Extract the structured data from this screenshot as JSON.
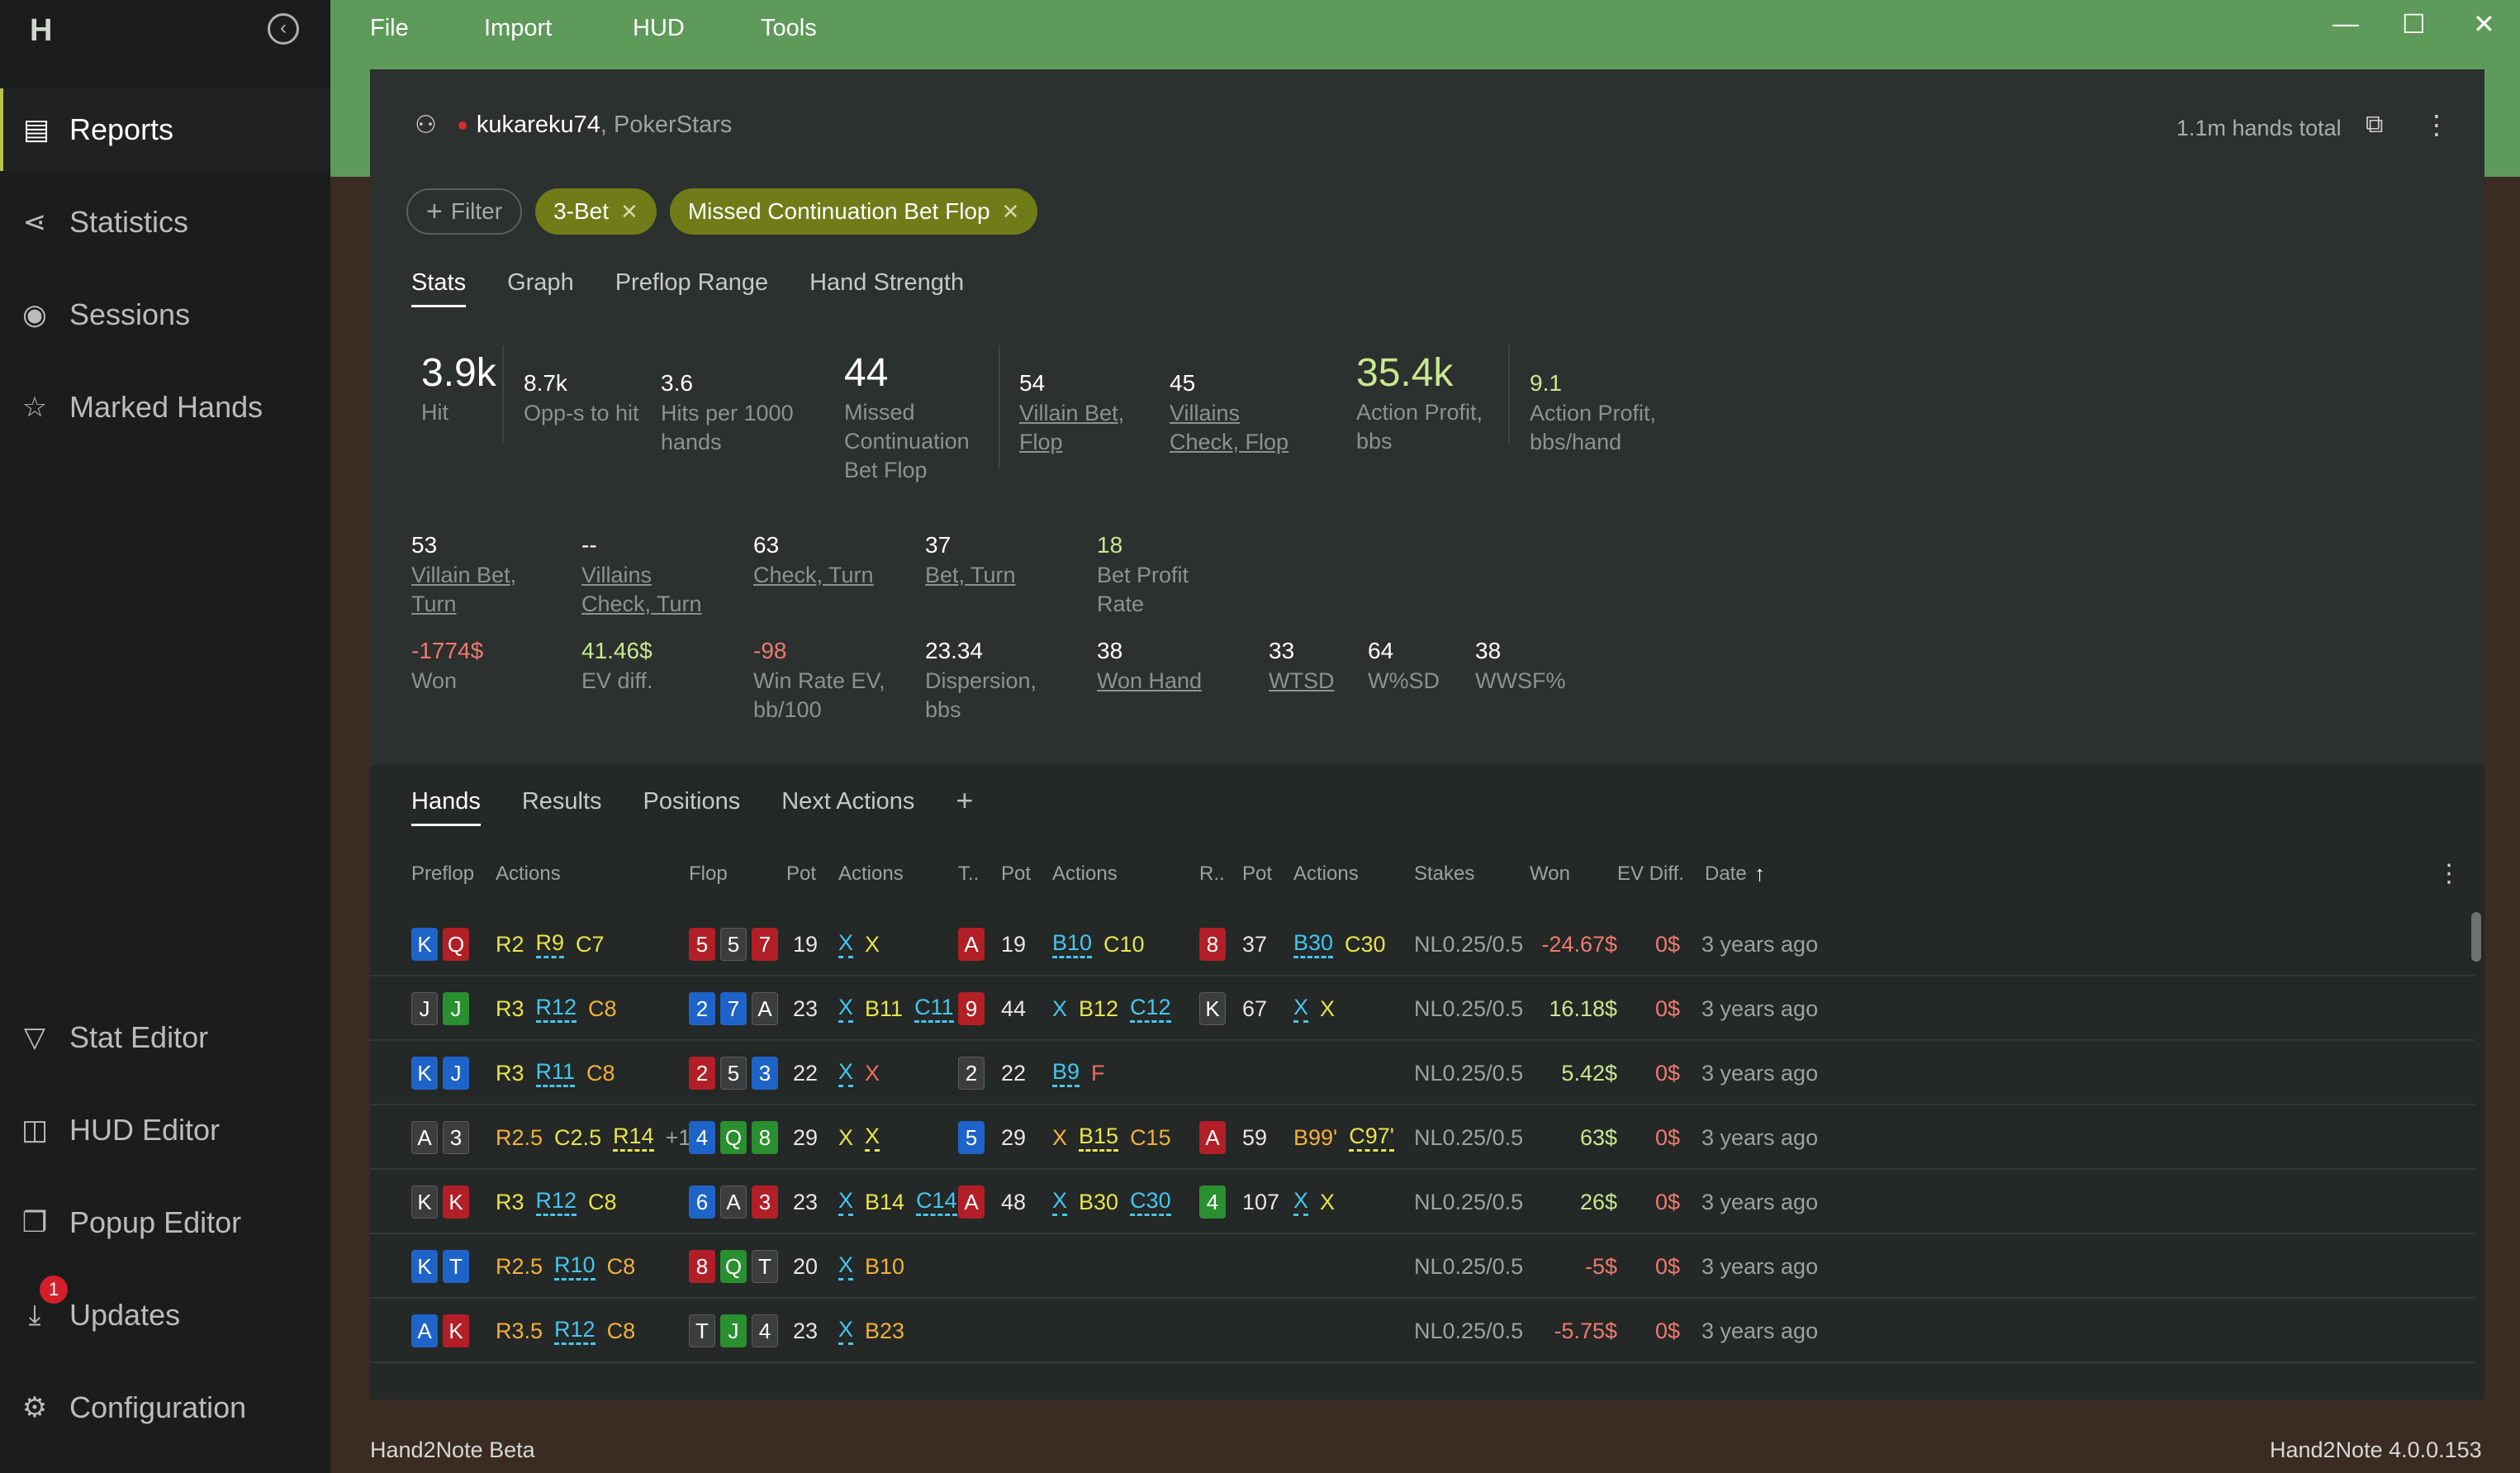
{
  "sidebar": {
    "logo": "H",
    "items": [
      {
        "label": "Reports",
        "icon": "document-icon"
      },
      {
        "label": "Statistics",
        "icon": "network-icon"
      },
      {
        "label": "Sessions",
        "icon": "broadcast-icon"
      },
      {
        "label": "Marked Hands",
        "icon": "star-list-icon"
      },
      {
        "label": "Stat Editor",
        "icon": "filter-icon"
      },
      {
        "label": "HUD Editor",
        "icon": "layout-icon"
      },
      {
        "label": "Popup Editor",
        "icon": "popup-icon"
      },
      {
        "label": "Updates",
        "icon": "download-icon"
      },
      {
        "label": "Configuration",
        "icon": "gear-icon"
      }
    ],
    "updates_badge": "1"
  },
  "menu": {
    "file": "File",
    "import": "Import",
    "hud": "HUD",
    "tools": "Tools"
  },
  "header": {
    "username": "kukareku74",
    "site": ", PokerStars",
    "hands_total": "1.1m hands total"
  },
  "filters": {
    "add_label": "Filter",
    "tags": [
      "3-Bet",
      "Missed Continuation Bet Flop"
    ]
  },
  "stats_tabs": [
    "Stats",
    "Graph",
    "Preflop Range",
    "Hand Strength"
  ],
  "stats": {
    "hit": {
      "value": "3.9k",
      "label": "Hit"
    },
    "opps": {
      "value": "8.7k",
      "label": "Opp-s to hit"
    },
    "hits_per": {
      "value": "3.6",
      "label1": "Hits per 1000",
      "label2": "hands"
    },
    "missed_cbet": {
      "value": "44",
      "label1": "Missed",
      "label2": "Continuation",
      "label3": "Bet Flop"
    },
    "villain_bet_flop": {
      "value": "54",
      "label1": "Villain Bet,",
      "label2": "Flop"
    },
    "villains_check_flop": {
      "value": "45",
      "label1": "Villains",
      "label2": "Check, Flop"
    },
    "action_profit_bbs": {
      "value": "35.4k",
      "label1": "Action Profit,",
      "label2": "bbs"
    },
    "action_profit_hand": {
      "value": "9.1",
      "label1": "Action Profit,",
      "label2": "bbs/hand"
    },
    "villain_bet_turn": {
      "value": "53",
      "label1": "Villain Bet,",
      "label2": "Turn"
    },
    "villains_check_turn": {
      "value": "--",
      "label1": "Villains",
      "label2": "Check, Turn"
    },
    "check_turn": {
      "value": "63",
      "label": "Check, Turn"
    },
    "bet_turn": {
      "value": "37",
      "label": "Bet, Turn"
    },
    "bet_profit": {
      "value": "18",
      "label1": "Bet Profit",
      "label2": "Rate"
    },
    "won": {
      "value": "-1774$",
      "label": "Won"
    },
    "ev_diff": {
      "value": "41.46$",
      "label": "EV diff."
    },
    "win_rate": {
      "value": "-98",
      "label1": "Win Rate EV,",
      "label2": "bb/100"
    },
    "dispersion": {
      "value": "23.34",
      "label1": "Dispersion,",
      "label2": "bbs"
    },
    "won_hand": {
      "value": "38",
      "label": "Won Hand"
    },
    "wtsd": {
      "value": "33",
      "label": "WTSD"
    },
    "wsd": {
      "value": "64",
      "label": "W%SD"
    },
    "wwsf": {
      "value": "38",
      "label": "WWSF%"
    }
  },
  "hands_tabs": [
    "Hands",
    "Results",
    "Positions",
    "Next Actions"
  ],
  "columns": {
    "preflop": "Preflop",
    "actions1": "Actions",
    "flop": "Flop",
    "pot1": "Pot",
    "actions2": "Actions",
    "turn": "T..",
    "pot2": "Pot",
    "actions3": "Actions",
    "river": "R..",
    "pot3": "Pot",
    "actions4": "Actions",
    "stakes": "Stakes",
    "won": "Won",
    "ev_diff": "EV Diff.",
    "date": "Date",
    "sort_arrow": "↑"
  },
  "rows": [
    {
      "hole": [
        {
          "r": "K",
          "s": "d"
        },
        {
          "r": "Q",
          "s": "h"
        }
      ],
      "pre": [
        {
          "t": "R2",
          "c": "y"
        },
        {
          "t": "R9",
          "c": "y",
          "d": "c"
        },
        {
          "t": "C7",
          "c": "y"
        }
      ],
      "flop": [
        {
          "r": "5",
          "s": "h"
        },
        {
          "r": "5",
          "s": "s"
        },
        {
          "r": "7",
          "s": "h"
        }
      ],
      "fpot": "19",
      "fa": [
        {
          "t": "X",
          "c": "x",
          "d": "c"
        },
        {
          "t": "X",
          "c": "y"
        }
      ],
      "turn": [
        {
          "r": "A",
          "s": "h"
        }
      ],
      "tpot": "19",
      "ta": [
        {
          "t": "B10",
          "c": "x",
          "d": "c"
        },
        {
          "t": "C10",
          "c": "y"
        }
      ],
      "river": [
        {
          "r": "8",
          "s": "h"
        }
      ],
      "rpot": "37",
      "ra": [
        {
          "t": "B30",
          "c": "x",
          "d": "c"
        },
        {
          "t": "C30",
          "c": "y"
        }
      ],
      "stakes": "NL0.25/0.5",
      "won": "-24.67$",
      "won_sign": "neg",
      "ev": "0$",
      "date": "3 years ago"
    },
    {
      "hole": [
        {
          "r": "J",
          "s": "s"
        },
        {
          "r": "J",
          "s": "c"
        }
      ],
      "pre": [
        {
          "t": "R3",
          "c": "y"
        },
        {
          "t": "R12",
          "c": "x",
          "d": "c"
        },
        {
          "t": "C8",
          "c": "r"
        }
      ],
      "flop": [
        {
          "r": "2",
          "s": "d"
        },
        {
          "r": "7",
          "s": "d"
        },
        {
          "r": "A",
          "s": "s"
        }
      ],
      "fpot": "23",
      "fa": [
        {
          "t": "X",
          "c": "x",
          "d": "c"
        },
        {
          "t": "B11",
          "c": "y"
        },
        {
          "t": "C11",
          "c": "x",
          "d": "c"
        }
      ],
      "turn": [
        {
          "r": "9",
          "s": "h"
        }
      ],
      "tpot": "44",
      "ta": [
        {
          "t": "X",
          "c": "x"
        },
        {
          "t": "B12",
          "c": "y"
        },
        {
          "t": "C12",
          "c": "x",
          "d": "c"
        }
      ],
      "river": [
        {
          "r": "K",
          "s": "s"
        }
      ],
      "rpot": "67",
      "ra": [
        {
          "t": "X",
          "c": "x",
          "d": "c"
        },
        {
          "t": "X",
          "c": "y"
        }
      ],
      "stakes": "NL0.25/0.5",
      "won": "16.18$",
      "won_sign": "pos",
      "ev": "0$",
      "date": "3 years ago"
    },
    {
      "hole": [
        {
          "r": "K",
          "s": "d"
        },
        {
          "r": "J",
          "s": "d"
        }
      ],
      "pre": [
        {
          "t": "R3",
          "c": "y"
        },
        {
          "t": "R11",
          "c": "x",
          "d": "c"
        },
        {
          "t": "C8",
          "c": "r"
        }
      ],
      "flop": [
        {
          "r": "2",
          "s": "h"
        },
        {
          "r": "5",
          "s": "s"
        },
        {
          "r": "3",
          "s": "d"
        }
      ],
      "fpot": "22",
      "fa": [
        {
          "t": "X",
          "c": "x",
          "d": "c"
        },
        {
          "t": "X",
          "c": "f"
        }
      ],
      "turn": [
        {
          "r": "2",
          "s": "s"
        }
      ],
      "tpot": "22",
      "ta": [
        {
          "t": "B9",
          "c": "x",
          "d": "c"
        },
        {
          "t": "F",
          "c": "f"
        }
      ],
      "river": [],
      "rpot": "",
      "ra": [],
      "stakes": "NL0.25/0.5",
      "won": "5.42$",
      "won_sign": "pos",
      "ev": "0$",
      "date": "3 years ago"
    },
    {
      "hole": [
        {
          "r": "A",
          "s": "s"
        },
        {
          "r": "3",
          "s": "s"
        }
      ],
      "pre": [
        {
          "t": "R2.5",
          "c": "r"
        },
        {
          "t": "C2.5",
          "c": "y"
        },
        {
          "t": "R14",
          "c": "y",
          "d": "y"
        },
        {
          "t": "+1",
          "c": "p"
        }
      ],
      "flop": [
        {
          "r": "4",
          "s": "d"
        },
        {
          "r": "Q",
          "s": "c"
        },
        {
          "r": "8",
          "s": "c"
        }
      ],
      "fpot": "29",
      "fa": [
        {
          "t": "X",
          "c": "y"
        },
        {
          "t": "X",
          "c": "y",
          "d": "y"
        }
      ],
      "turn": [
        {
          "r": "5",
          "s": "d"
        }
      ],
      "tpot": "29",
      "ta": [
        {
          "t": "X",
          "c": "r"
        },
        {
          "t": "B15",
          "c": "y",
          "d": "y"
        },
        {
          "t": "C15",
          "c": "r"
        }
      ],
      "river": [
        {
          "r": "A",
          "s": "h"
        }
      ],
      "rpot": "59",
      "ra": [
        {
          "t": "B99'",
          "c": "r"
        },
        {
          "t": "C97'",
          "c": "y",
          "d": "y"
        }
      ],
      "stakes": "NL0.25/0.5",
      "won": "63$",
      "won_sign": "pos",
      "ev": "0$",
      "date": "3 years ago"
    },
    {
      "hole": [
        {
          "r": "K",
          "s": "s"
        },
        {
          "r": "K",
          "s": "h"
        }
      ],
      "pre": [
        {
          "t": "R3",
          "c": "y"
        },
        {
          "t": "R12",
          "c": "x",
          "d": "c"
        },
        {
          "t": "C8",
          "c": "y"
        }
      ],
      "flop": [
        {
          "r": "6",
          "s": "d"
        },
        {
          "r": "A",
          "s": "s"
        },
        {
          "r": "3",
          "s": "h"
        }
      ],
      "fpot": "23",
      "fa": [
        {
          "t": "X",
          "c": "x",
          "d": "c"
        },
        {
          "t": "B14",
          "c": "y"
        },
        {
          "t": "C14",
          "c": "x",
          "d": "c"
        }
      ],
      "turn": [
        {
          "r": "A",
          "s": "h"
        }
      ],
      "tpot": "48",
      "ta": [
        {
          "t": "X",
          "c": "x",
          "d": "c"
        },
        {
          "t": "B30",
          "c": "y"
        },
        {
          "t": "C30",
          "c": "x",
          "d": "c"
        }
      ],
      "river": [
        {
          "r": "4",
          "s": "c"
        }
      ],
      "rpot": "107",
      "ra": [
        {
          "t": "X",
          "c": "x",
          "d": "c"
        },
        {
          "t": "X",
          "c": "y"
        }
      ],
      "stakes": "NL0.25/0.5",
      "won": "26$",
      "won_sign": "pos",
      "ev": "0$",
      "date": "3 years ago"
    },
    {
      "hole": [
        {
          "r": "K",
          "s": "d"
        },
        {
          "r": "T",
          "s": "d"
        }
      ],
      "pre": [
        {
          "t": "R2.5",
          "c": "r"
        },
        {
          "t": "R10",
          "c": "x",
          "d": "c"
        },
        {
          "t": "C8",
          "c": "r"
        }
      ],
      "flop": [
        {
          "r": "8",
          "s": "h"
        },
        {
          "r": "Q",
          "s": "c"
        },
        {
          "r": "T",
          "s": "s"
        }
      ],
      "fpot": "20",
      "fa": [
        {
          "t": "X",
          "c": "x",
          "d": "c"
        },
        {
          "t": "B10",
          "c": "r"
        }
      ],
      "turn": [],
      "tpot": "",
      "ta": [],
      "river": [],
      "rpot": "",
      "ra": [],
      "stakes": "NL0.25/0.5",
      "won": "-5$",
      "won_sign": "neg",
      "ev": "0$",
      "date": "3 years ago"
    },
    {
      "hole": [
        {
          "r": "A",
          "s": "d"
        },
        {
          "r": "K",
          "s": "h"
        }
      ],
      "pre": [
        {
          "t": "R3.5",
          "c": "r"
        },
        {
          "t": "R12",
          "c": "x",
          "d": "c"
        },
        {
          "t": "C8",
          "c": "r"
        }
      ],
      "flop": [
        {
          "r": "T",
          "s": "s"
        },
        {
          "r": "J",
          "s": "c"
        },
        {
          "r": "4",
          "s": "s"
        }
      ],
      "fpot": "23",
      "fa": [
        {
          "t": "X",
          "c": "x",
          "d": "c"
        },
        {
          "t": "B23",
          "c": "r"
        }
      ],
      "turn": [],
      "tpot": "",
      "ta": [],
      "river": [],
      "rpot": "",
      "ra": [],
      "stakes": "NL0.25/0.5",
      "won": "-5.75$",
      "won_sign": "neg",
      "ev": "0$",
      "date": "3 years ago"
    }
  ],
  "status": {
    "left": "Hand2Note Beta",
    "right": "Hand2Note 4.0.0.153"
  },
  "colors": {
    "accent": "#b8c24a",
    "topbar": "#5e9a5a",
    "tag": "#6f7c18",
    "positive": "#c8e890",
    "negative": "#ef7a6f"
  }
}
